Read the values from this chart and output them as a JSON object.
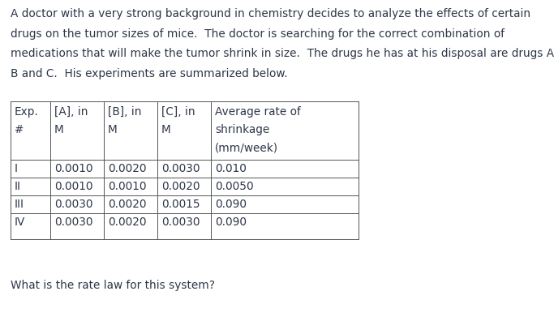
{
  "para_lines": [
    "A doctor with a very strong background in chemistry decides to analyze the effects of certain",
    "drugs on the tumor sizes of mice.  The doctor is searching for the correct combination of",
    "medications that will make the tumor shrink in size.  The drugs he has at his disposal are drugs A,",
    "B and C.  His experiments are summarized below."
  ],
  "question": "What is the rate law for this system?",
  "header_lines": [
    [
      "Exp.",
      "#",
      ""
    ],
    [
      "[A], in",
      "M",
      ""
    ],
    [
      "[B], in",
      "M",
      ""
    ],
    [
      "[C], in",
      "M",
      ""
    ],
    [
      "Average rate of",
      "shrinkage",
      "(mm/week)"
    ]
  ],
  "rows": [
    [
      "I",
      "0.0010",
      "0.0020",
      "0.0030",
      "0.010"
    ],
    [
      "II",
      "0.0010",
      "0.0010",
      "0.0020",
      "0.0050"
    ],
    [
      "III",
      "0.0030",
      "0.0020",
      "0.0015",
      "0.090"
    ],
    [
      "IV",
      "0.0030",
      "0.0020",
      "0.0030",
      "0.090"
    ]
  ],
  "bg_color": "#ffffff",
  "text_color": "#2d3748",
  "font_size_para": 9.8,
  "font_size_table": 9.8,
  "font_size_question": 9.8
}
